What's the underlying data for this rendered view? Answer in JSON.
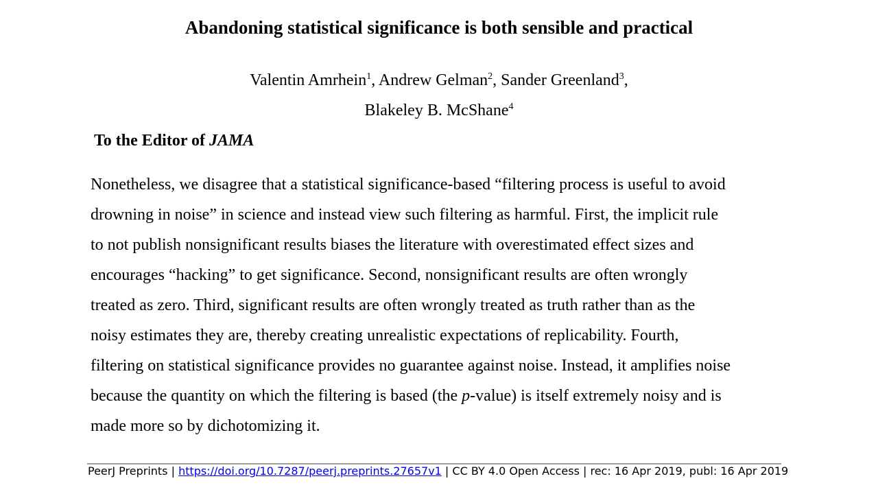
{
  "title": "Abandoning statistical significance is both sensible and practical",
  "authors": [
    {
      "name": "Valentin Amrhein",
      "affiliation": "1",
      "sep": ", "
    },
    {
      "name": "Andrew Gelman",
      "affiliation": "2",
      "sep": ", "
    },
    {
      "name": "Sander Greenland",
      "affiliation": "3",
      "sep": ","
    },
    {
      "name": "Blakeley B. McShane",
      "affiliation": "4",
      "sep": ""
    }
  ],
  "salutation": {
    "prefix": "To the Editor of ",
    "journal": "JAMA"
  },
  "body_lines": [
    "Nonetheless, we disagree that a statistical significance-based “filtering process is useful to avoid",
    "drowning in noise” in science and instead view such filtering as harmful. First, the implicit rule",
    "to not publish nonsignificant results biases the literature with overestimated effect sizes and",
    "encourages “hacking” to get significance. Second, nonsignificant results are often wrongly",
    "treated as zero. Third, significant results are often wrongly treated as truth rather than as the",
    "noisy estimates they are, thereby creating unrealistic expectations of replicability. Fourth,",
    "filtering on statistical significance provides no guarantee against noise. Instead, it amplifies noise"
  ],
  "body_line_8": {
    "before": "because the quantity on which the filtering is based (the ",
    "italic": "p",
    "after": "-value) is itself extremely noisy and is"
  },
  "body_line_9": "made more so by dichotomizing it.",
  "footer": {
    "prefix": "PeerJ Preprints | ",
    "doi_link": "https://doi.org/10.7287/peerj.preprints.27657v1",
    "suffix": " | CC BY 4.0 Open Access | rec: 16 Apr 2019, publ: 16 Apr 2019"
  },
  "colors": {
    "text": "#000000",
    "link": "#0000ee",
    "rule": "#a0a0a0"
  }
}
